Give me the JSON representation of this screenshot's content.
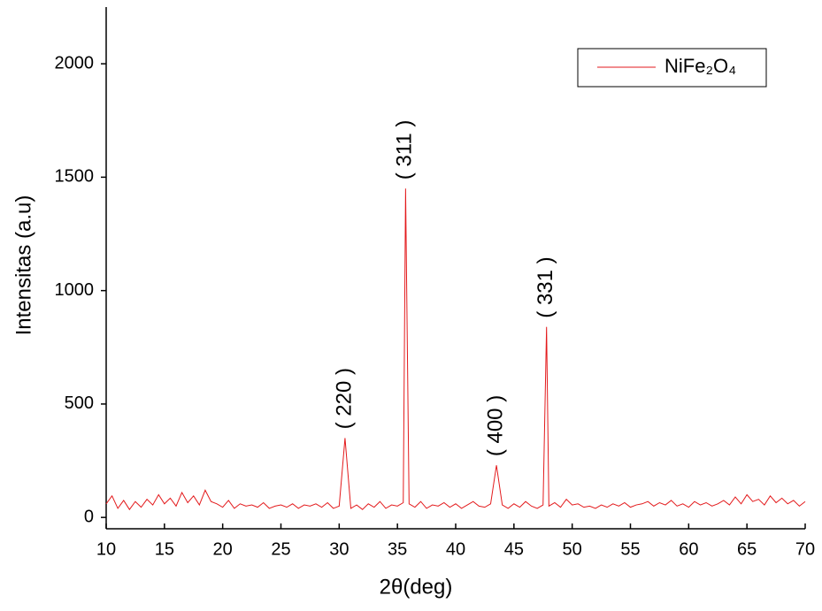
{
  "chart_data": {
    "type": "line",
    "xlabel": "2θ(deg)",
    "ylabel": "Intensitas (a.u)",
    "x": [
      10,
      10.5,
      11,
      11.5,
      12,
      12.5,
      13,
      13.5,
      14,
      14.5,
      15,
      15.5,
      16,
      16.5,
      17,
      17.5,
      18,
      18.5,
      19,
      19.5,
      20,
      20.5,
      21,
      21.5,
      22,
      22.5,
      23,
      23.5,
      24,
      24.5,
      25,
      25.5,
      26,
      26.5,
      27,
      27.5,
      28,
      28.5,
      29,
      29.5,
      30,
      30.5,
      31,
      31.5,
      32,
      32.5,
      33,
      33.5,
      34,
      34.5,
      35,
      35.5,
      35.7,
      36,
      36.5,
      37,
      37.5,
      38,
      38.5,
      39,
      39.5,
      40,
      40.5,
      41,
      41.5,
      42,
      42.5,
      43,
      43.5,
      44,
      44.5,
      45,
      45.5,
      46,
      46.5,
      47,
      47.5,
      47.8,
      48,
      48.5,
      49,
      49.5,
      50,
      50.5,
      51,
      51.5,
      52,
      52.5,
      53,
      53.5,
      54,
      54.5,
      55,
      55.5,
      56,
      56.5,
      57,
      57.5,
      58,
      58.5,
      59,
      59.5,
      60,
      60.5,
      61,
      61.5,
      62,
      62.5,
      63,
      63.5,
      64,
      64.5,
      65,
      65.5,
      66,
      66.5,
      67,
      67.5,
      68,
      68.5,
      69,
      69.5,
      70
    ],
    "series": [
      {
        "name": "NiFe₂O₄",
        "color": "#e31a1c",
        "values": [
          60,
          95,
          40,
          75,
          35,
          70,
          45,
          80,
          55,
          100,
          60,
          85,
          50,
          110,
          65,
          95,
          55,
          120,
          70,
          60,
          45,
          75,
          40,
          60,
          50,
          55,
          45,
          65,
          40,
          50,
          55,
          45,
          60,
          40,
          55,
          50,
          60,
          45,
          65,
          40,
          50,
          350,
          40,
          55,
          35,
          60,
          45,
          70,
          40,
          55,
          50,
          65,
          1450,
          60,
          45,
          70,
          40,
          55,
          50,
          65,
          45,
          60,
          40,
          55,
          70,
          50,
          45,
          60,
          230,
          55,
          40,
          60,
          45,
          70,
          50,
          40,
          55,
          840,
          50,
          65,
          45,
          80,
          55,
          60,
          45,
          50,
          40,
          55,
          45,
          60,
          50,
          65,
          45,
          55,
          60,
          70,
          50,
          65,
          55,
          75,
          50,
          60,
          45,
          70,
          55,
          65,
          50,
          60,
          75,
          55,
          90,
          60,
          100,
          70,
          80,
          55,
          95,
          65,
          85,
          60,
          75,
          50,
          70
        ]
      }
    ],
    "annotations": [
      {
        "text": "( 220 )",
        "x": 30.5
      },
      {
        "text": "( 311 )",
        "x": 35.7
      },
      {
        "text": "( 400 )",
        "x": 43.5
      },
      {
        "text": "( 331 )",
        "x": 47.8
      }
    ],
    "xlim": [
      10,
      70
    ],
    "xticks": [
      10,
      15,
      20,
      25,
      30,
      35,
      40,
      45,
      50,
      55,
      60,
      65,
      70
    ],
    "ylim": [
      -50,
      2250
    ],
    "yticks": [
      0,
      500,
      1000,
      1500,
      2000
    ],
    "legend": "upper right"
  }
}
